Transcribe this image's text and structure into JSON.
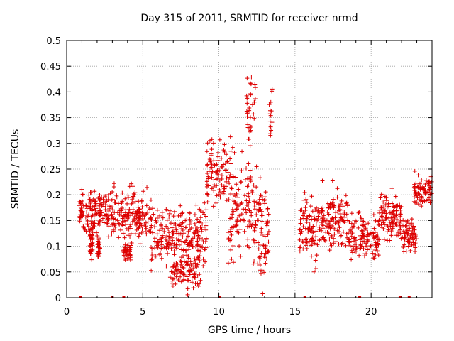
{
  "chart_data": {
    "type": "scatter",
    "title": "Day 315 of 2011, SRMTID for receiver nrmd",
    "xlabel": "GPS time / hours",
    "ylabel": "SRMTID / TECUs",
    "xlim": [
      0,
      24
    ],
    "ylim": [
      0,
      0.5
    ],
    "xticks": [
      0,
      5,
      10,
      15,
      20
    ],
    "xtick_labels": [
      "0",
      "5",
      "10",
      "15",
      "20"
    ],
    "yticks": [
      0,
      0.05,
      0.1,
      0.15,
      0.2,
      0.25,
      0.3,
      0.35,
      0.4,
      0.45,
      0.5
    ],
    "ytick_labels": [
      "0",
      "0.05",
      "0.1",
      "0.15",
      "0.2",
      "0.25",
      "0.3",
      "0.35",
      "0.4",
      "0.45",
      "0.5"
    ],
    "grid": true,
    "marker": "+",
    "series_color": "#dd0000",
    "segments": [
      {
        "x": [
          0.8,
          3.0
        ],
        "center": 0.17,
        "spread": 0.04,
        "n": 160
      },
      {
        "x": [
          1.5,
          1.7
        ],
        "center": 0.11,
        "spread": 0.03,
        "n": 30
      },
      {
        "x": [
          2.0,
          2.2
        ],
        "center": 0.1,
        "spread": 0.02,
        "n": 25
      },
      {
        "x": [
          3.0,
          5.5
        ],
        "center": 0.16,
        "spread": 0.045,
        "n": 170
      },
      {
        "x": [
          3.7,
          4.2
        ],
        "center": 0.09,
        "spread": 0.02,
        "n": 40
      },
      {
        "x": [
          5.5,
          9.2
        ],
        "center": 0.12,
        "spread": 0.05,
        "n": 240
      },
      {
        "x": [
          6.8,
          8.8
        ],
        "center": 0.05,
        "spread": 0.03,
        "n": 90
      },
      {
        "x": [
          9.2,
          10.6
        ],
        "center": 0.24,
        "spread": 0.06,
        "n": 90
      },
      {
        "x": [
          10.6,
          12.2
        ],
        "center": 0.18,
        "spread": 0.1,
        "n": 120
      },
      {
        "x": [
          11.8,
          12.4
        ],
        "center": 0.38,
        "spread": 0.06,
        "n": 30
      },
      {
        "x": [
          12.2,
          13.3
        ],
        "center": 0.14,
        "spread": 0.1,
        "n": 90
      },
      {
        "x": [
          13.3,
          13.5
        ],
        "center": 0.36,
        "spread": 0.05,
        "n": 15
      },
      {
        "x": [
          15.3,
          16.5
        ],
        "center": 0.13,
        "spread": 0.07,
        "n": 90
      },
      {
        "x": [
          16.5,
          18.5
        ],
        "center": 0.15,
        "spread": 0.05,
        "n": 140
      },
      {
        "x": [
          18.5,
          20.5
        ],
        "center": 0.12,
        "spread": 0.04,
        "n": 130
      },
      {
        "x": [
          20.5,
          22.0
        ],
        "center": 0.16,
        "spread": 0.04,
        "n": 110
      },
      {
        "x": [
          22.0,
          23.0
        ],
        "center": 0.12,
        "spread": 0.03,
        "n": 70
      },
      {
        "x": [
          22.8,
          24.0
        ],
        "center": 0.21,
        "spread": 0.025,
        "n": 80
      }
    ],
    "gap_markers_x": [
      0.9,
      3.0,
      3.75,
      10.05,
      15.65,
      19.25,
      21.9,
      22.5
    ]
  }
}
